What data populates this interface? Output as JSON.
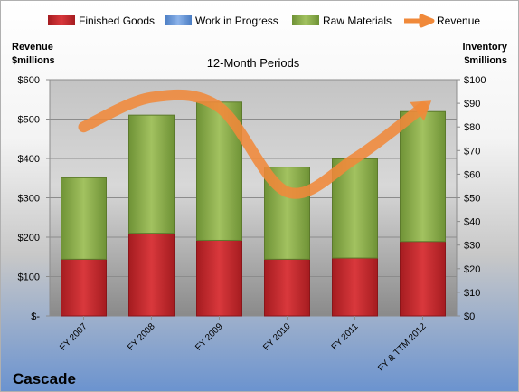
{
  "chart_data": {
    "type": "bar",
    "stacked": true,
    "subtitle": "12-Month Periods",
    "company": "Cascade",
    "categories": [
      "FY 2007",
      "FY 2008",
      "FY 2009",
      "FY 2010",
      "FY 2011",
      "FY & TTM 2012"
    ],
    "left_axis": {
      "label_line1": "Revenue",
      "label_line2": "$millions",
      "range": [
        0,
        600
      ],
      "ticks": [
        0,
        100,
        200,
        300,
        400,
        500,
        600
      ],
      "tick_labels": [
        "$-",
        "$100",
        "$200",
        "$300",
        "$400",
        "$500",
        "$600"
      ]
    },
    "right_axis": {
      "label_line1": "Inventory",
      "label_line2": "$millions",
      "range": [
        0,
        100
      ],
      "ticks": [
        0,
        10,
        20,
        30,
        40,
        50,
        60,
        70,
        80,
        90,
        100
      ],
      "tick_labels": [
        "$0",
        "$10",
        "$20",
        "$30",
        "$40",
        "$50",
        "$60",
        "$70",
        "$80",
        "$90",
        "$100"
      ]
    },
    "series": [
      {
        "name": "Finished Goods",
        "axis": "right",
        "color": "#c0262a",
        "values": [
          24,
          35,
          32,
          24,
          24.5,
          31.5
        ]
      },
      {
        "name": "Work in Progress",
        "axis": "right",
        "color": "#5b8fd6",
        "values": [
          0,
          0,
          0,
          0,
          0,
          0
        ]
      },
      {
        "name": "Raw Materials",
        "axis": "right",
        "color": "#8db04a",
        "values": [
          34.5,
          50,
          58.5,
          39,
          42,
          55
        ]
      },
      {
        "name": "Revenue",
        "axis": "left",
        "type": "line",
        "color": "#f0893a",
        "values": [
          480,
          555,
          530,
          315,
          400,
          530
        ]
      }
    ],
    "grid": true,
    "legend": "top"
  }
}
